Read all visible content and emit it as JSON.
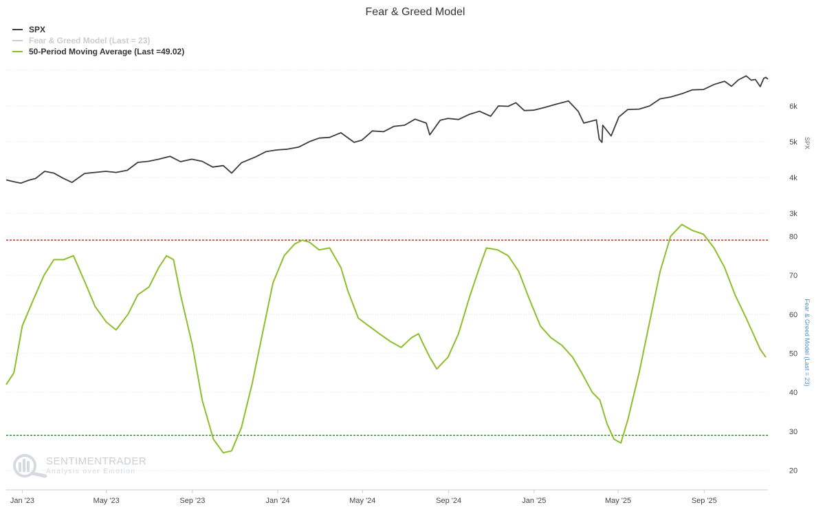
{
  "chart_data": {
    "type": "line",
    "title": "Fear & Greed Model",
    "x_tick_labels": [
      "Jan '23",
      "May '23",
      "Sep '23",
      "Jan '24",
      "May '24",
      "Sep '24",
      "Jan '25",
      "May '25",
      "Sep '25"
    ],
    "legend_position": "top-left",
    "grid": true,
    "panels": [
      {
        "name": "SPX",
        "axis_title": "SPX",
        "y_ticks": [
          3000,
          4000,
          5000,
          6000
        ],
        "y_tick_labels": [
          "3k",
          "4k",
          "5k",
          "6k"
        ],
        "ylim": [
          2900,
          7000
        ]
      },
      {
        "name": "Fear & Greed Model",
        "axis_title": "Fear & Greed Model (Last = 23)",
        "y_ticks": [
          20,
          30,
          40,
          50,
          60,
          70,
          80
        ],
        "y_tick_labels": [
          "20",
          "30",
          "40",
          "50",
          "60",
          "70",
          "80"
        ],
        "ylim": [
          15,
          85
        ],
        "reference_lines": [
          {
            "value": 79,
            "color": "#c00000",
            "style": "dashed"
          },
          {
            "value": 29,
            "color": "#1a7f1a",
            "style": "dashed"
          }
        ]
      }
    ],
    "series": [
      {
        "name": "SPX",
        "legend": "SPX",
        "color": "#3a3a3a",
        "panel": 0,
        "points": [
          [
            "2022-12-09",
            3930
          ],
          [
            "2022-12-20",
            3880
          ],
          [
            "2022-12-30",
            3840
          ],
          [
            "2023-01-10",
            3920
          ],
          [
            "2023-01-20",
            3970
          ],
          [
            "2023-02-02",
            4170
          ],
          [
            "2023-02-15",
            4120
          ],
          [
            "2023-03-01",
            3970
          ],
          [
            "2023-03-13",
            3860
          ],
          [
            "2023-03-31",
            4110
          ],
          [
            "2023-04-15",
            4140
          ],
          [
            "2023-04-30",
            4170
          ],
          [
            "2023-05-15",
            4140
          ],
          [
            "2023-05-31",
            4200
          ],
          [
            "2023-06-15",
            4420
          ],
          [
            "2023-06-30",
            4450
          ],
          [
            "2023-07-15",
            4510
          ],
          [
            "2023-07-31",
            4590
          ],
          [
            "2023-08-15",
            4440
          ],
          [
            "2023-08-31",
            4510
          ],
          [
            "2023-09-15",
            4450
          ],
          [
            "2023-09-30",
            4290
          ],
          [
            "2023-10-15",
            4330
          ],
          [
            "2023-10-27",
            4120
          ],
          [
            "2023-11-10",
            4410
          ],
          [
            "2023-11-30",
            4570
          ],
          [
            "2023-12-15",
            4720
          ],
          [
            "2023-12-31",
            4770
          ],
          [
            "2024-01-15",
            4790
          ],
          [
            "2024-01-31",
            4850
          ],
          [
            "2024-02-15",
            5000
          ],
          [
            "2024-02-29",
            5100
          ],
          [
            "2024-03-15",
            5120
          ],
          [
            "2024-03-31",
            5250
          ],
          [
            "2024-04-19",
            4980
          ],
          [
            "2024-04-30",
            5040
          ],
          [
            "2024-05-15",
            5300
          ],
          [
            "2024-05-31",
            5280
          ],
          [
            "2024-06-15",
            5430
          ],
          [
            "2024-06-30",
            5460
          ],
          [
            "2024-07-15",
            5630
          ],
          [
            "2024-07-31",
            5520
          ],
          [
            "2024-08-05",
            5190
          ],
          [
            "2024-08-20",
            5600
          ],
          [
            "2024-08-31",
            5650
          ],
          [
            "2024-09-15",
            5620
          ],
          [
            "2024-09-30",
            5760
          ],
          [
            "2024-10-15",
            5850
          ],
          [
            "2024-10-31",
            5710
          ],
          [
            "2024-11-11",
            6000
          ],
          [
            "2024-11-25",
            5990
          ],
          [
            "2024-12-06",
            6090
          ],
          [
            "2024-12-18",
            5870
          ],
          [
            "2024-12-31",
            5880
          ],
          [
            "2025-01-15",
            5950
          ],
          [
            "2025-01-31",
            6040
          ],
          [
            "2025-02-19",
            6140
          ],
          [
            "2025-03-05",
            5850
          ],
          [
            "2025-03-13",
            5520
          ],
          [
            "2025-03-31",
            5610
          ],
          [
            "2025-04-04",
            5070
          ],
          [
            "2025-04-08",
            4980
          ],
          [
            "2025-04-09",
            5460
          ],
          [
            "2025-04-21",
            5160
          ],
          [
            "2025-05-02",
            5690
          ],
          [
            "2025-05-15",
            5900
          ],
          [
            "2025-05-31",
            5910
          ],
          [
            "2025-06-15",
            6000
          ],
          [
            "2025-06-30",
            6200
          ],
          [
            "2025-07-15",
            6250
          ],
          [
            "2025-07-31",
            6340
          ],
          [
            "2025-08-15",
            6450
          ],
          [
            "2025-08-31",
            6460
          ],
          [
            "2025-09-15",
            6600
          ],
          [
            "2025-09-30",
            6690
          ],
          [
            "2025-10-10",
            6550
          ],
          [
            "2025-10-20",
            6730
          ],
          [
            "2025-10-31",
            6840
          ],
          [
            "2025-11-07",
            6720
          ],
          [
            "2025-11-13",
            6740
          ],
          [
            "2025-11-20",
            6540
          ],
          [
            "2025-11-25",
            6770
          ],
          [
            "2025-11-28",
            6800
          ],
          [
            "2025-12-01",
            6750
          ]
        ]
      },
      {
        "name": "Fear & Greed Model",
        "legend": "Fear & Greed Model (Last = 23)",
        "color": "#cccccc",
        "panel": 1,
        "hidden": true,
        "points": []
      },
      {
        "name": "50-Period Moving Average",
        "legend": "50-Period Moving Average (Last =49.02)",
        "color": "#8cbd2a",
        "panel": 1,
        "points": [
          [
            "2022-12-09",
            42
          ],
          [
            "2022-12-20",
            45
          ],
          [
            "2023-01-01",
            57
          ],
          [
            "2023-01-15",
            63
          ],
          [
            "2023-02-01",
            70
          ],
          [
            "2023-02-15",
            74
          ],
          [
            "2023-03-01",
            74
          ],
          [
            "2023-03-15",
            75
          ],
          [
            "2023-04-01",
            68
          ],
          [
            "2023-04-15",
            62
          ],
          [
            "2023-05-01",
            58
          ],
          [
            "2023-05-15",
            56
          ],
          [
            "2023-06-01",
            60
          ],
          [
            "2023-06-15",
            65
          ],
          [
            "2023-07-01",
            67
          ],
          [
            "2023-07-15",
            72
          ],
          [
            "2023-07-26",
            75
          ],
          [
            "2023-08-05",
            74
          ],
          [
            "2023-08-15",
            65
          ],
          [
            "2023-09-01",
            52
          ],
          [
            "2023-09-15",
            38
          ],
          [
            "2023-10-01",
            28
          ],
          [
            "2023-10-15",
            24.5
          ],
          [
            "2023-10-27",
            25
          ],
          [
            "2023-11-10",
            31
          ],
          [
            "2023-11-25",
            42
          ],
          [
            "2023-12-10",
            55
          ],
          [
            "2023-12-25",
            68
          ],
          [
            "2024-01-10",
            75
          ],
          [
            "2024-01-25",
            78
          ],
          [
            "2024-02-05",
            79
          ],
          [
            "2024-02-15",
            78.5
          ],
          [
            "2024-02-29",
            76.5
          ],
          [
            "2024-03-15",
            77
          ],
          [
            "2024-03-31",
            72
          ],
          [
            "2024-04-10",
            66
          ],
          [
            "2024-04-25",
            59
          ],
          [
            "2024-05-10",
            57
          ],
          [
            "2024-05-25",
            55
          ],
          [
            "2024-06-10",
            53
          ],
          [
            "2024-06-25",
            51.5
          ],
          [
            "2024-07-10",
            54
          ],
          [
            "2024-07-20",
            55
          ],
          [
            "2024-07-25",
            53
          ],
          [
            "2024-08-05",
            49
          ],
          [
            "2024-08-15",
            46
          ],
          [
            "2024-08-31",
            49
          ],
          [
            "2024-09-15",
            55
          ],
          [
            "2024-09-30",
            64
          ],
          [
            "2024-10-15",
            72
          ],
          [
            "2024-10-25",
            77
          ],
          [
            "2024-11-10",
            76.5
          ],
          [
            "2024-11-25",
            75
          ],
          [
            "2024-12-10",
            71
          ],
          [
            "2024-12-25",
            64
          ],
          [
            "2025-01-10",
            57
          ],
          [
            "2025-01-25",
            54
          ],
          [
            "2025-02-10",
            52
          ],
          [
            "2025-02-25",
            49
          ],
          [
            "2025-03-10",
            45
          ],
          [
            "2025-03-25",
            40
          ],
          [
            "2025-04-05",
            38
          ],
          [
            "2025-04-15",
            32
          ],
          [
            "2025-04-25",
            28
          ],
          [
            "2025-05-05",
            27
          ],
          [
            "2025-05-15",
            33
          ],
          [
            "2025-05-31",
            45
          ],
          [
            "2025-06-15",
            58
          ],
          [
            "2025-06-30",
            71
          ],
          [
            "2025-07-15",
            80
          ],
          [
            "2025-07-31",
            83
          ],
          [
            "2025-08-15",
            81.5
          ],
          [
            "2025-08-31",
            80.5
          ],
          [
            "2025-09-15",
            77
          ],
          [
            "2025-09-30",
            72
          ],
          [
            "2025-10-15",
            65
          ],
          [
            "2025-10-31",
            59
          ],
          [
            "2025-11-10",
            55
          ],
          [
            "2025-11-20",
            51
          ],
          [
            "2025-11-28",
            49
          ]
        ]
      }
    ],
    "watermark": {
      "name": "SENTIMENTRADER",
      "tagline": "Analysis over Emotion"
    }
  }
}
